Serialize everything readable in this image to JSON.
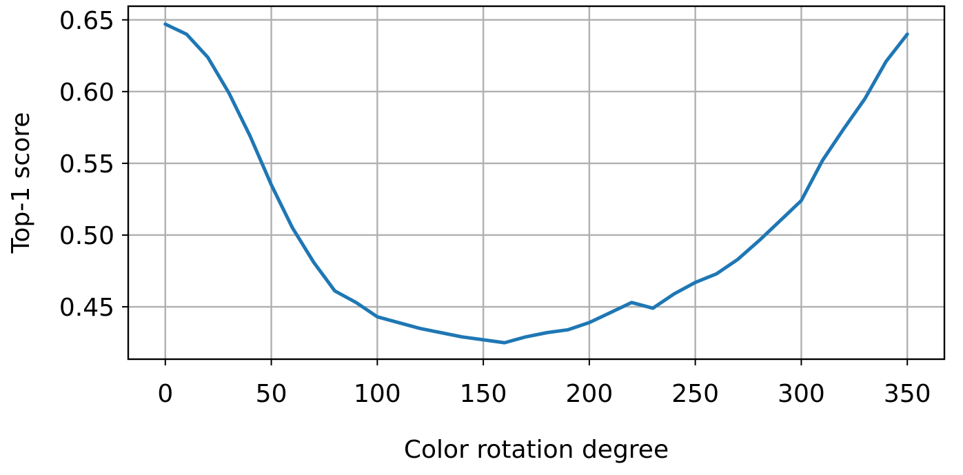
{
  "chart_data": {
    "type": "line",
    "title": "",
    "xlabel": "Color rotation degree",
    "ylabel": "Top-1 score",
    "xlim": [
      -17.5,
      367.5
    ],
    "ylim": [
      0.4135,
      0.6595
    ],
    "xticks": [
      0,
      50,
      100,
      150,
      200,
      250,
      300,
      350
    ],
    "xtick_labels": [
      "0",
      "50",
      "100",
      "150",
      "200",
      "250",
      "300",
      "350"
    ],
    "yticks": [
      0.45,
      0.5,
      0.55,
      0.6,
      0.65
    ],
    "ytick_labels": [
      "0.45",
      "0.50",
      "0.55",
      "0.60",
      "0.65"
    ],
    "grid": true,
    "legend": "none",
    "series": [
      {
        "color": "#1f77b4",
        "x": [
          0,
          10,
          20,
          30,
          40,
          50,
          60,
          70,
          80,
          90,
          100,
          110,
          120,
          130,
          140,
          150,
          160,
          170,
          180,
          190,
          200,
          210,
          220,
          230,
          240,
          250,
          260,
          270,
          280,
          290,
          300,
          310,
          320,
          330,
          340,
          350
        ],
        "y": [
          0.647,
          0.64,
          0.624,
          0.599,
          0.569,
          0.535,
          0.505,
          0.481,
          0.461,
          0.453,
          0.443,
          0.439,
          0.435,
          0.432,
          0.429,
          0.427,
          0.425,
          0.429,
          0.432,
          0.434,
          0.439,
          0.446,
          0.453,
          0.449,
          0.459,
          0.467,
          0.473,
          0.483,
          0.496,
          0.51,
          0.524,
          0.552,
          0.574,
          0.595,
          0.621,
          0.64
        ]
      }
    ]
  }
}
